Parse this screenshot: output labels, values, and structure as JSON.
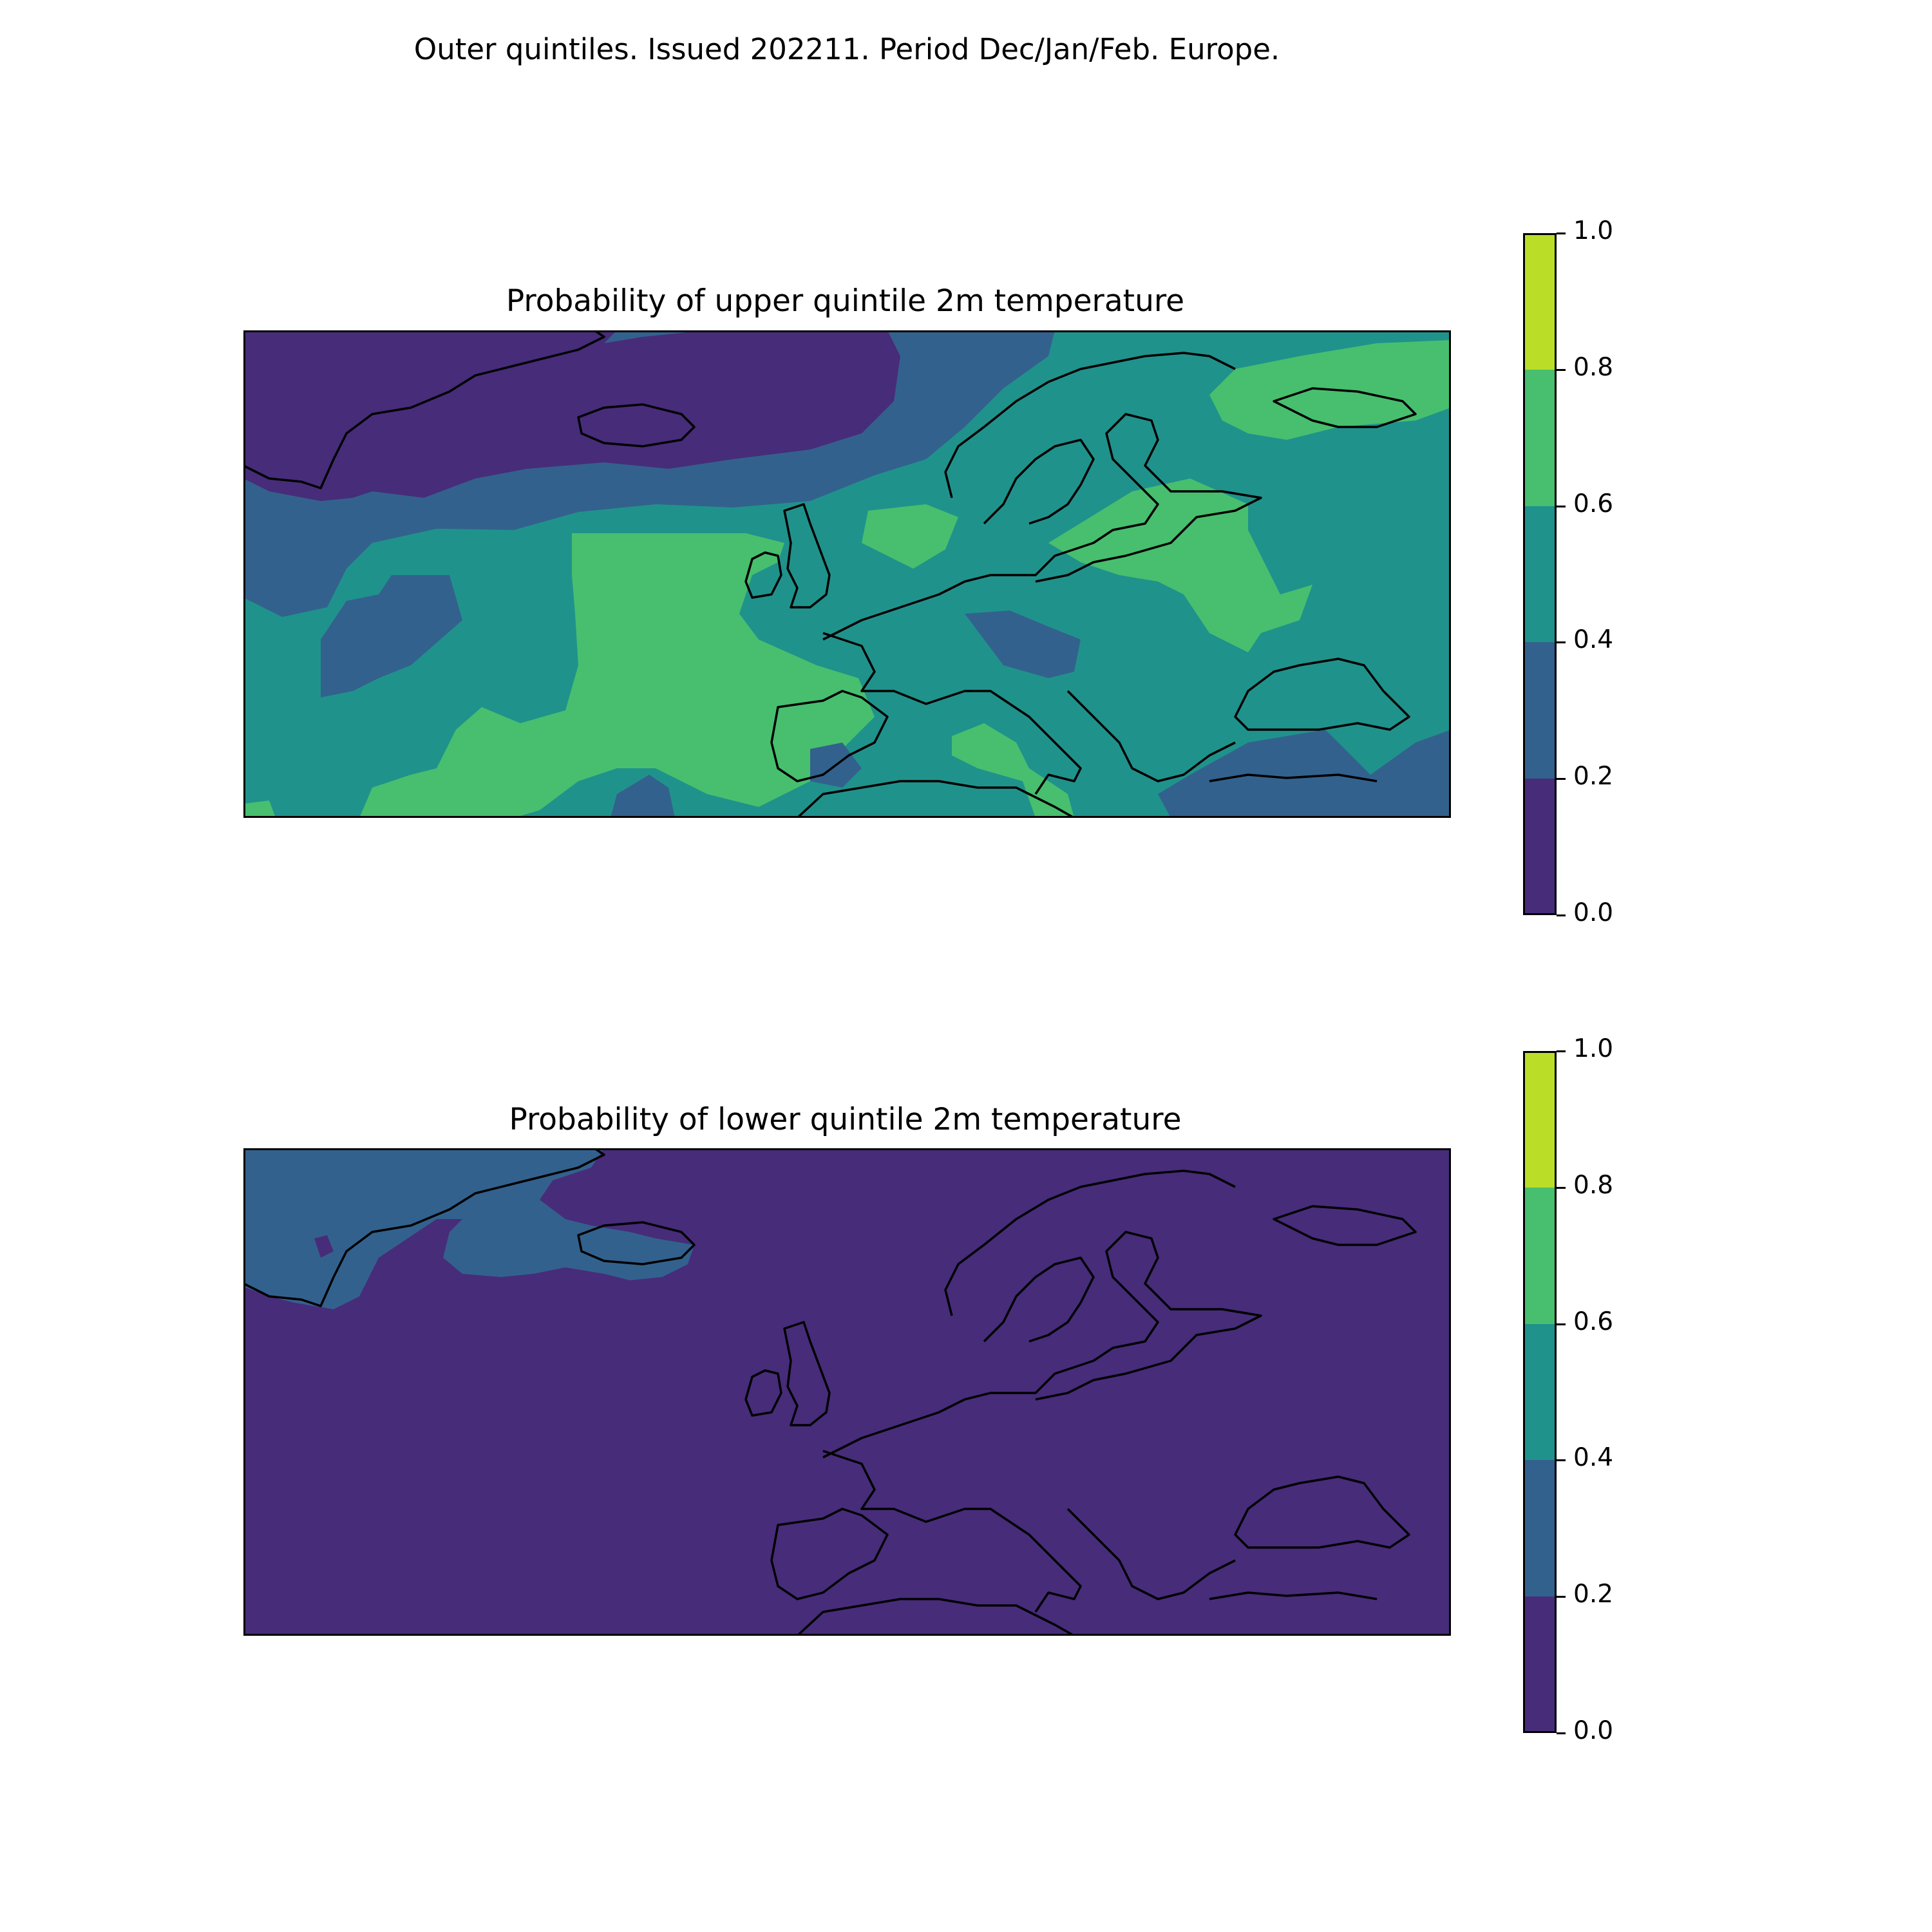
{
  "figure": {
    "suptitle": "Outer quintiles. Issued 202211. Period Dec/Jan/Feb. Europe."
  },
  "colors": {
    "levels": [
      "#472c7a",
      "#33618d",
      "#20928c",
      "#47bf6e",
      "#bade28"
    ],
    "coastline": "#000000"
  },
  "chart_data": [
    {
      "type": "heatmap",
      "title": "Probability of upper quintile 2m temperature",
      "region": "Europe",
      "levels": [
        0.0,
        0.2,
        0.4,
        0.6,
        0.8,
        1.0
      ],
      "colorbar": {
        "ticks": [
          "0.0",
          "0.2",
          "0.4",
          "0.6",
          "0.8",
          "1.0"
        ]
      },
      "regions": [
        {
          "area": "Greenland, Iceland and far North Atlantic",
          "range": [
            0.0,
            0.2
          ]
        },
        {
          "area": "Norwegian Sea and mid North Atlantic band",
          "range": [
            0.2,
            0.4
          ]
        },
        {
          "area": "Scandinavia, central and eastern Europe",
          "range": [
            0.4,
            0.6
          ]
        },
        {
          "area": "Eastern Atlantic west of Iberia and France",
          "range": [
            0.6,
            0.8
          ]
        },
        {
          "area": "Southern Baltic and western Russia",
          "range": [
            0.6,
            0.8
          ]
        },
        {
          "area": "Kola Peninsula / White Sea",
          "range": [
            0.6,
            0.8
          ]
        }
      ]
    },
    {
      "type": "heatmap",
      "title": "Probability of lower quintile 2m temperature",
      "region": "Europe",
      "levels": [
        0.0,
        0.2,
        0.4,
        0.6,
        0.8,
        1.0
      ],
      "colorbar": {
        "ticks": [
          "0.0",
          "0.2",
          "0.4",
          "0.6",
          "0.8",
          "1.0"
        ]
      },
      "regions": [
        {
          "area": "Most of domain",
          "range": [
            0.0,
            0.2
          ]
        },
        {
          "area": "Greenland east coast and Denmark Strait",
          "range": [
            0.2,
            0.4
          ]
        }
      ]
    }
  ]
}
